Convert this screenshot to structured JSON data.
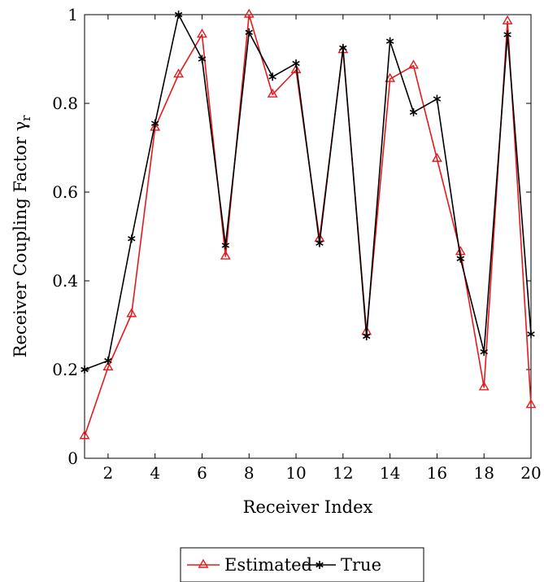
{
  "chart_data": {
    "type": "line",
    "xlabel": "Receiver Index",
    "ylabel": "Receiver Coupling Factor γ",
    "ylabel_subscript": "r",
    "xlim": [
      1,
      20
    ],
    "ylim": [
      0,
      1
    ],
    "xticks": [
      2,
      4,
      6,
      8,
      10,
      12,
      14,
      16,
      18,
      20
    ],
    "yticks": [
      0,
      0.2,
      0.4,
      0.6,
      0.8,
      1
    ],
    "ytick_labels": [
      "0",
      "0.2",
      "0.4",
      "0.6",
      "0.8",
      "1"
    ],
    "grid": false,
    "legend_position": "bottom-center",
    "x": [
      1,
      2,
      3,
      4,
      5,
      6,
      7,
      8,
      9,
      10,
      11,
      12,
      13,
      14,
      15,
      16,
      17,
      18,
      19,
      20
    ],
    "series": [
      {
        "name": "Estimated",
        "color": "#e41a1c",
        "marker": "triangle",
        "values": [
          0.05,
          0.205,
          0.325,
          0.745,
          0.865,
          0.955,
          0.455,
          1.0,
          0.82,
          0.875,
          0.495,
          0.92,
          0.285,
          0.855,
          0.885,
          0.675,
          0.465,
          0.16,
          0.985,
          0.12
        ]
      },
      {
        "name": "True",
        "color": "#000000",
        "marker": "asterisk",
        "values": [
          0.2,
          0.22,
          0.495,
          0.755,
          1.0,
          0.9,
          0.48,
          0.96,
          0.86,
          0.89,
          0.485,
          0.925,
          0.275,
          0.94,
          0.78,
          0.81,
          0.45,
          0.24,
          0.955,
          0.28
        ]
      }
    ]
  }
}
